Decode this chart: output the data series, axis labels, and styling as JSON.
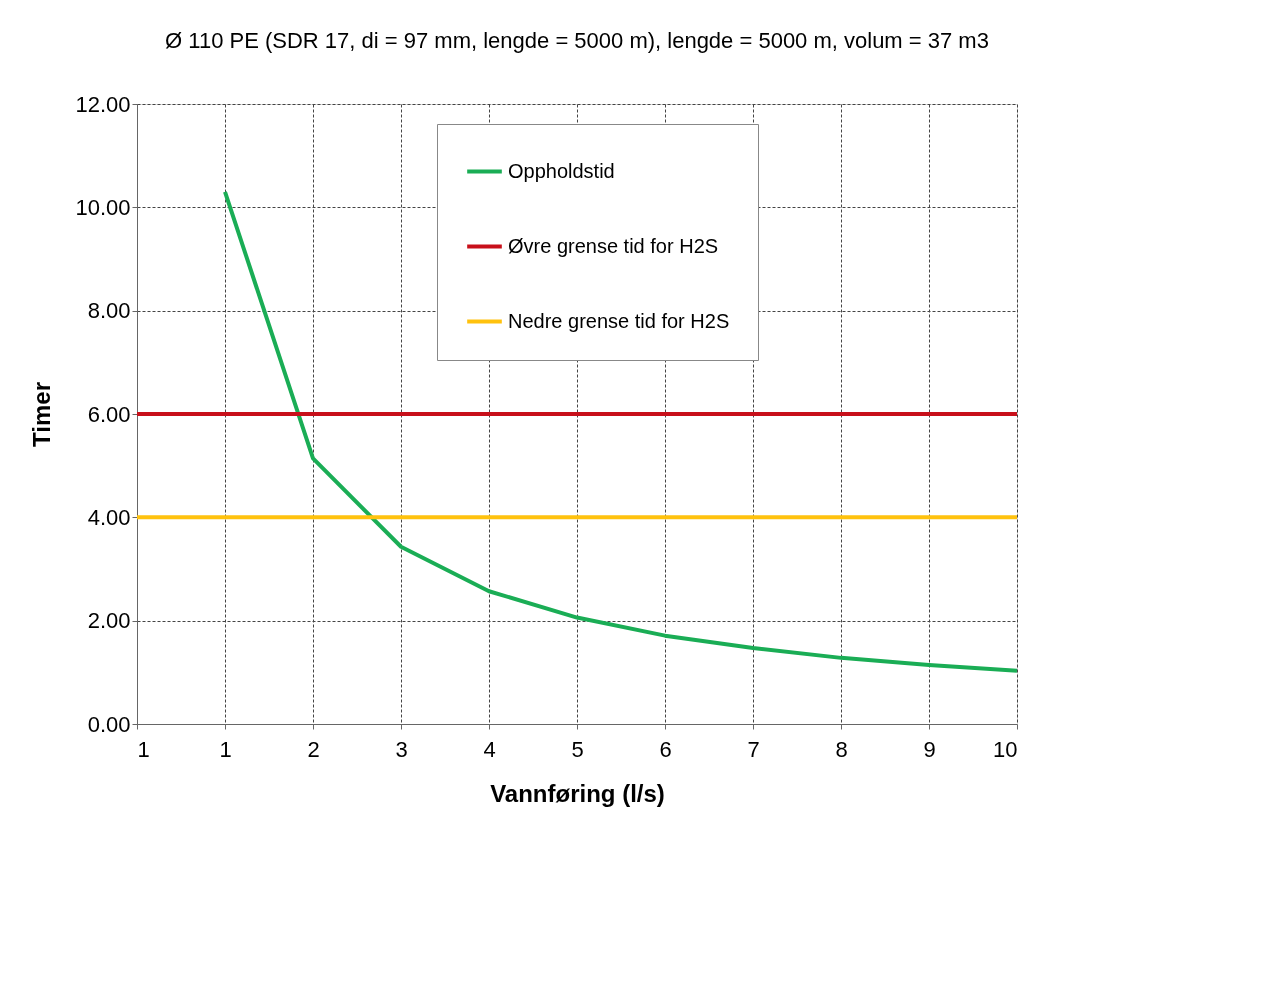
{
  "chart_data": {
    "type": "line",
    "title": "Ø 110 PE (SDR 17, di = 97 mm, lengde = 5000 m), lengde = 5000 m, volum = 37 m3",
    "xlabel": "Vannføring (l/s)",
    "ylabel": "Timer",
    "categories": [
      "1",
      "1",
      "2",
      "3",
      "4",
      "5",
      "6",
      "7",
      "8",
      "9",
      "10"
    ],
    "series": [
      {
        "name": "Oppholdstid",
        "color": "#1aad55",
        "values": [
          null,
          10.3,
          5.14,
          3.43,
          2.57,
          2.06,
          1.71,
          1.47,
          1.28,
          1.14,
          1.03
        ]
      },
      {
        "name": "Øvre grense tid for H2S",
        "color": "#c8101a",
        "values": [
          6,
          6,
          6,
          6,
          6,
          6,
          6,
          6,
          6,
          6,
          6
        ]
      },
      {
        "name": "Nedre grense tid for H2S",
        "color": "#ffc20e",
        "values": [
          4,
          4,
          4,
          4,
          4,
          4,
          4,
          4,
          4,
          4,
          4
        ]
      }
    ],
    "ylim": [
      0,
      12
    ],
    "yticks": [
      {
        "value": 0,
        "label": "0.00"
      },
      {
        "value": 2,
        "label": "2.00"
      },
      {
        "value": 4,
        "label": "4.00"
      },
      {
        "value": 6,
        "label": "6.00"
      },
      {
        "value": 8,
        "label": "8.00"
      },
      {
        "value": 10,
        "label": "10.00"
      },
      {
        "value": 12,
        "label": "12.00"
      }
    ],
    "grid": true,
    "legend": "top",
    "marker": "none",
    "line_style": "solid"
  }
}
